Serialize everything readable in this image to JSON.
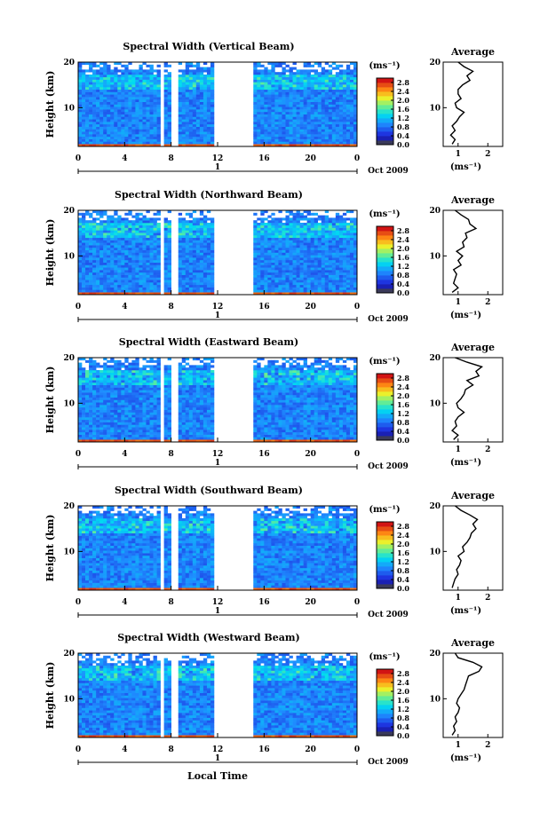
{
  "figure": {
    "xlabel": "Local Time"
  },
  "chart_data": [
    {
      "type": "heatmap",
      "title": "Spectral Width (Vertical Beam)",
      "ylabel": "Height (km)",
      "x_ticks": [
        "0",
        "4",
        "8",
        "12",
        "16",
        "20",
        "0"
      ],
      "y_ticks": [
        "20",
        "10"
      ],
      "xlim": [
        0,
        24
      ],
      "ylim": [
        1.5,
        20
      ],
      "date_label": "Oct 2009",
      "day_label": "1",
      "colorbar": {
        "unit": "(ms⁻¹)",
        "ticks": [
          "2.8",
          "2.4",
          "2.0",
          "1.6",
          "1.2",
          "0.8",
          "0.4",
          "0.0"
        ],
        "min": 0.0,
        "max": 3.0
      },
      "data_gaps_hours": [
        [
          7.1,
          7.5
        ],
        [
          8.1,
          8.5
        ],
        [
          11.6,
          15.2
        ],
        [
          15.9,
          16.1
        ]
      ],
      "average": {
        "title": "Average",
        "xlabel": "(ms⁻¹)",
        "x_ticks": [
          "1",
          "2"
        ],
        "xlim": [
          0.5,
          2.5
        ],
        "y_ticks": [
          "20",
          "10"
        ],
        "height_km": [
          2,
          3,
          4,
          5,
          6,
          7,
          8,
          9,
          10,
          11,
          12,
          13,
          14,
          15,
          16,
          17,
          18,
          19,
          20
        ],
        "width_ms": [
          0.8,
          0.9,
          0.75,
          0.9,
          0.8,
          0.95,
          1.05,
          1.2,
          0.95,
          0.9,
          1.1,
          1.0,
          1.0,
          1.15,
          1.4,
          1.3,
          1.5,
          1.2,
          1.0
        ]
      }
    },
    {
      "type": "heatmap",
      "title": "Spectral Width (Northward Beam)",
      "ylabel": "Height (km)",
      "x_ticks": [
        "0",
        "4",
        "8",
        "12",
        "16",
        "20",
        "0"
      ],
      "y_ticks": [
        "20",
        "10"
      ],
      "xlim": [
        0,
        24
      ],
      "ylim": [
        1.5,
        20
      ],
      "date_label": "Oct 2009",
      "day_label": "1",
      "colorbar": {
        "unit": "(ms⁻¹)",
        "ticks": [
          "2.8",
          "2.4",
          "2.0",
          "1.6",
          "1.2",
          "0.8",
          "0.4",
          "0.0"
        ],
        "min": 0.0,
        "max": 3.0
      },
      "data_gaps_hours": [
        [
          7.1,
          7.5
        ],
        [
          8.1,
          8.5
        ],
        [
          11.6,
          15.2
        ],
        [
          15.9,
          16.1
        ]
      ],
      "average": {
        "title": "Average",
        "xlabel": "(ms⁻¹)",
        "x_ticks": [
          "1",
          "2"
        ],
        "xlim": [
          0.5,
          2.5
        ],
        "y_ticks": [
          "20",
          "10"
        ],
        "height_km": [
          2,
          3,
          4,
          5,
          6,
          7,
          8,
          9,
          10,
          11,
          12,
          13,
          14,
          15,
          16,
          17,
          18,
          19,
          20
        ],
        "width_ms": [
          0.8,
          1.0,
          0.85,
          0.9,
          0.95,
          0.85,
          1.1,
          1.0,
          1.15,
          0.95,
          1.2,
          1.15,
          1.3,
          1.25,
          1.6,
          1.4,
          1.35,
          1.1,
          0.9
        ]
      }
    },
    {
      "type": "heatmap",
      "title": "Spectral Width (Eastward Beam)",
      "ylabel": "Height (km)",
      "x_ticks": [
        "0",
        "4",
        "8",
        "12",
        "16",
        "20",
        "0"
      ],
      "y_ticks": [
        "20",
        "10"
      ],
      "xlim": [
        0,
        24
      ],
      "ylim": [
        1.5,
        20
      ],
      "date_label": "Oct 2009",
      "day_label": "1",
      "colorbar": {
        "unit": "(ms⁻¹)",
        "ticks": [
          "2.8",
          "2.4",
          "2.0",
          "1.6",
          "1.2",
          "0.8",
          "0.4",
          "0.0"
        ],
        "min": 0.0,
        "max": 3.0
      },
      "data_gaps_hours": [
        [
          7.1,
          7.5
        ],
        [
          8.1,
          8.5
        ],
        [
          11.6,
          15.2
        ],
        [
          15.9,
          16.1
        ]
      ],
      "average": {
        "title": "Average",
        "xlabel": "(ms⁻¹)",
        "x_ticks": [
          "1",
          "2"
        ],
        "xlim": [
          0.5,
          2.5
        ],
        "y_ticks": [
          "20",
          "10"
        ],
        "height_km": [
          2,
          3,
          4,
          5,
          6,
          7,
          8,
          9,
          10,
          11,
          12,
          13,
          14,
          15,
          16,
          17,
          18,
          19,
          20
        ],
        "width_ms": [
          0.85,
          1.0,
          0.8,
          0.95,
          0.9,
          1.0,
          1.2,
          1.0,
          0.95,
          1.1,
          1.2,
          1.25,
          1.5,
          1.3,
          1.7,
          1.6,
          1.8,
          1.3,
          0.9
        ]
      }
    },
    {
      "type": "heatmap",
      "title": "Spectral Width (Southward Beam)",
      "ylabel": "Height (km)",
      "x_ticks": [
        "0",
        "4",
        "8",
        "12",
        "16",
        "20",
        "0"
      ],
      "y_ticks": [
        "20",
        "10"
      ],
      "xlim": [
        0,
        24
      ],
      "ylim": [
        1.5,
        20
      ],
      "date_label": "Oct 2009",
      "day_label": "1",
      "colorbar": {
        "unit": "(ms⁻¹)",
        "ticks": [
          "2.8",
          "2.4",
          "2.0",
          "1.6",
          "1.2",
          "0.8",
          "0.4",
          "0.0"
        ],
        "min": 0.0,
        "max": 3.0
      },
      "data_gaps_hours": [
        [
          7.1,
          7.5
        ],
        [
          8.1,
          8.5
        ],
        [
          11.6,
          15.2
        ]
      ],
      "average": {
        "title": "Average",
        "xlabel": "(ms⁻¹)",
        "x_ticks": [
          "1",
          "2"
        ],
        "xlim": [
          0.5,
          2.5
        ],
        "y_ticks": [
          "20",
          "10"
        ],
        "height_km": [
          2,
          3,
          4,
          5,
          6,
          7,
          8,
          9,
          10,
          11,
          12,
          13,
          14,
          15,
          16,
          17,
          18,
          19,
          20
        ],
        "width_ms": [
          0.8,
          0.85,
          0.9,
          1.0,
          0.95,
          1.05,
          1.1,
          1.0,
          1.2,
          1.15,
          1.3,
          1.4,
          1.45,
          1.6,
          1.5,
          1.65,
          1.4,
          1.1,
          0.9
        ]
      }
    },
    {
      "type": "heatmap",
      "title": "Spectral Width (Westward Beam)",
      "ylabel": "Height (km)",
      "x_ticks": [
        "0",
        "4",
        "8",
        "12",
        "16",
        "20",
        "0"
      ],
      "y_ticks": [
        "20",
        "10"
      ],
      "xlim": [
        0,
        24
      ],
      "ylim": [
        1.5,
        20
      ],
      "date_label": "Oct 2009",
      "day_label": "1",
      "colorbar": {
        "unit": "(ms⁻¹)",
        "ticks": [
          "2.8",
          "2.4",
          "2.0",
          "1.6",
          "1.2",
          "0.8",
          "0.4",
          "0.0"
        ],
        "min": 0.0,
        "max": 3.0
      },
      "data_gaps_hours": [
        [
          7.1,
          7.5
        ],
        [
          8.1,
          8.5
        ],
        [
          11.6,
          15.2
        ]
      ],
      "average": {
        "title": "Average",
        "xlabel": "(ms⁻¹)",
        "x_ticks": [
          "1",
          "2"
        ],
        "xlim": [
          0.5,
          2.5
        ],
        "y_ticks": [
          "20",
          "10"
        ],
        "height_km": [
          2,
          3,
          4,
          5,
          6,
          7,
          8,
          9,
          10,
          11,
          12,
          13,
          14,
          15,
          16,
          17,
          18,
          19,
          20
        ],
        "width_ms": [
          0.8,
          0.9,
          0.85,
          0.95,
          0.9,
          1.0,
          1.05,
          0.95,
          1.0,
          1.1,
          1.2,
          1.25,
          1.3,
          1.35,
          1.7,
          1.8,
          1.5,
          1.0,
          0.9
        ]
      }
    }
  ]
}
